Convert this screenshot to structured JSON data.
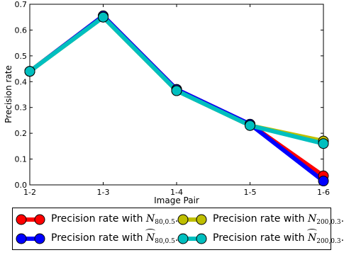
{
  "chart_data": {
    "type": "line",
    "xlabel": "Image Pair",
    "ylabel": "Precision rate",
    "categories": [
      "1-2",
      "1-3",
      "1-4",
      "1-5",
      "1-6"
    ],
    "ylim": [
      0,
      0.7
    ],
    "yticks": [
      "0.0",
      "0.1",
      "0.2",
      "0.3",
      "0.4",
      "0.5",
      "0.6",
      "0.7"
    ],
    "series": [
      {
        "id": "s1",
        "color": "#ff0000",
        "values": [
          0.44,
          0.655,
          0.37,
          0.235,
          0.035
        ]
      },
      {
        "id": "s2",
        "color": "#0000ff",
        "values": [
          0.44,
          0.655,
          0.37,
          0.235,
          0.015
        ]
      },
      {
        "id": "s3",
        "color": "#bfbf00",
        "values": [
          0.44,
          0.65,
          0.365,
          0.23,
          0.17
        ]
      },
      {
        "id": "s4",
        "color": "#00bfbf",
        "values": [
          0.44,
          0.65,
          0.365,
          0.23,
          0.16
        ]
      }
    ],
    "legend": {
      "placement": "below",
      "entries": [
        {
          "prefix": "Precision rate with ",
          "symbol": "N",
          "hat": false,
          "sub": "80,0.5",
          "color": "#ff0000"
        },
        {
          "prefix": "Precision rate with ",
          "symbol": "N",
          "hat": false,
          "sub": "200,0.3",
          "color": "#bfbf00"
        },
        {
          "prefix": "Precision rate with ",
          "symbol": "N",
          "hat": true,
          "sub": "80,0.5",
          "color": "#0000ff"
        },
        {
          "prefix": "Precision rate with ",
          "symbol": "N",
          "hat": true,
          "sub": "200,0.3",
          "color": "#00bfbf"
        }
      ]
    }
  }
}
